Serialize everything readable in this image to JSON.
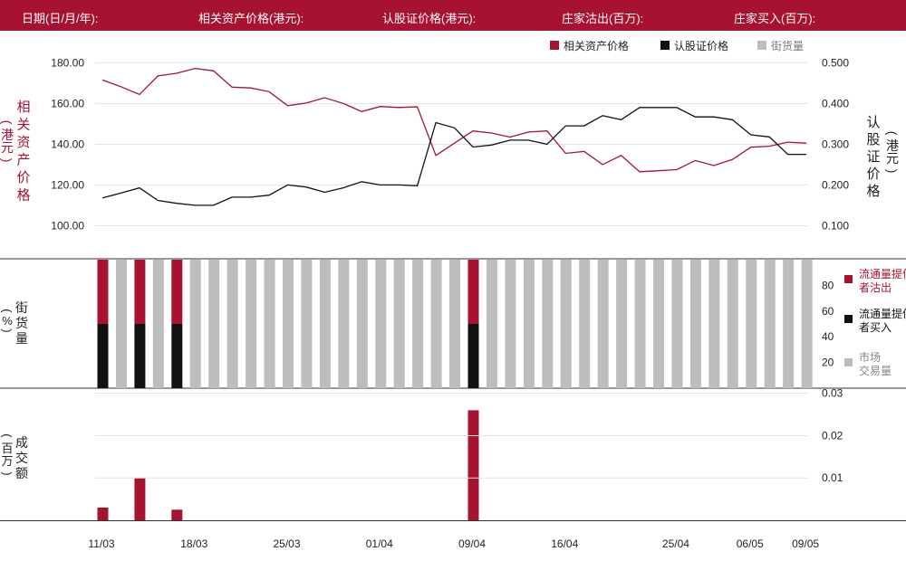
{
  "header": {
    "date": "日期(日/月/年):",
    "underlying": "相关资产价格(港元):",
    "warrant": "认股证价格(港元):",
    "mm_sell": "庄家沽出(百万):",
    "mm_buy": "庄家买入(百万):"
  },
  "colors": {
    "accent": "#a6122f",
    "black": "#111111",
    "gray": "#bdbdbd"
  },
  "chart_data": [
    {
      "type": "line",
      "legend": [
        "相关资产价格",
        "认股证价格",
        "街货量"
      ],
      "legend_position": "top-right",
      "ylabel_left": "相关资产价格(港元)",
      "ylabel_right": "认股证价格(港元)",
      "ylim_left": [
        90,
        185
      ],
      "ylim_right": [
        0.05,
        0.525
      ],
      "yticks_left": [
        "100.00",
        "120.00",
        "140.00",
        "160.00",
        "180.00"
      ],
      "yticks_right": [
        "0.100",
        "0.200",
        "0.300",
        "0.400",
        "0.500"
      ],
      "grid": true,
      "x_labels": [
        "11/03",
        "18/03",
        "25/03",
        "01/04",
        "09/04",
        "16/04",
        "25/04",
        "06/05",
        "09/05"
      ],
      "series": [
        {
          "name": "相关资产价格",
          "axis": "left",
          "values": [
            171.5,
            168.2,
            164.4,
            173.5,
            174.8,
            177.2,
            176.0,
            168.0,
            167.6,
            165.8,
            158.9,
            160.2,
            162.8,
            160.0,
            156.0,
            158.5,
            158.0,
            158.3,
            134.5,
            140.5,
            146.5,
            145.5,
            143.5,
            146.0,
            146.5,
            135.5,
            136.5,
            130.0,
            134.5,
            126.5,
            127.0,
            127.5,
            132.0,
            129.5,
            132.5,
            138.5,
            139.0,
            141.0,
            140.5
          ]
        },
        {
          "name": "认股证价格",
          "axis": "right",
          "values": [
            0.168,
            0.18,
            0.193,
            0.162,
            0.155,
            0.15,
            0.15,
            0.17,
            0.17,
            0.175,
            0.2,
            0.195,
            0.182,
            0.193,
            0.208,
            0.2,
            0.2,
            0.198,
            0.353,
            0.34,
            0.293,
            0.298,
            0.31,
            0.31,
            0.3,
            0.345,
            0.345,
            0.37,
            0.36,
            0.39,
            0.39,
            0.39,
            0.367,
            0.367,
            0.36,
            0.323,
            0.318,
            0.275,
            0.275
          ]
        }
      ]
    },
    {
      "type": "bar",
      "ylabel": "街货量(%)",
      "ylim": [
        0,
        100
      ],
      "yticks": [
        "20",
        "40",
        "60",
        "80"
      ],
      "legend": [
        "流通量提供者沽出",
        "流通量提供者买入",
        "市场交易量"
      ],
      "series": [
        {
          "name": "流通量提供者沽出",
          "values": [
            50,
            0,
            50,
            0,
            50,
            0,
            0,
            0,
            0,
            0,
            0,
            0,
            0,
            0,
            0,
            0,
            0,
            0,
            0,
            0,
            50,
            0,
            0,
            0,
            0,
            0,
            0,
            0,
            0,
            0,
            0,
            0,
            0,
            0,
            0,
            0,
            0,
            0,
            0
          ]
        },
        {
          "name": "流通量提供者买入",
          "values": [
            50,
            0,
            50,
            0,
            50,
            0,
            0,
            0,
            0,
            0,
            0,
            0,
            0,
            0,
            0,
            0,
            0,
            0,
            0,
            0,
            50,
            0,
            0,
            0,
            0,
            0,
            0,
            0,
            0,
            0,
            0,
            0,
            0,
            0,
            0,
            0,
            0,
            0,
            0
          ]
        },
        {
          "name": "市场交易量",
          "values": [
            0,
            100,
            0,
            100,
            0,
            100,
            100,
            100,
            100,
            100,
            100,
            100,
            100,
            100,
            100,
            100,
            100,
            100,
            100,
            100,
            0,
            100,
            100,
            100,
            100,
            100,
            100,
            100,
            100,
            100,
            100,
            100,
            100,
            100,
            100,
            100,
            100,
            100,
            100
          ]
        }
      ]
    },
    {
      "type": "bar",
      "ylabel": "成交额(百万)",
      "ylim": [
        0,
        0.031
      ],
      "yticks": [
        "0.01",
        "0.02",
        "0.03"
      ],
      "values": [
        0.003,
        0,
        0.01,
        0,
        0.0025,
        0,
        0,
        0,
        0,
        0,
        0,
        0,
        0,
        0,
        0,
        0,
        0,
        0,
        0,
        0,
        0.026,
        0,
        0,
        0,
        0,
        0,
        0,
        0,
        0,
        0,
        0,
        0,
        0,
        0,
        0,
        0,
        0,
        0,
        0
      ]
    }
  ]
}
